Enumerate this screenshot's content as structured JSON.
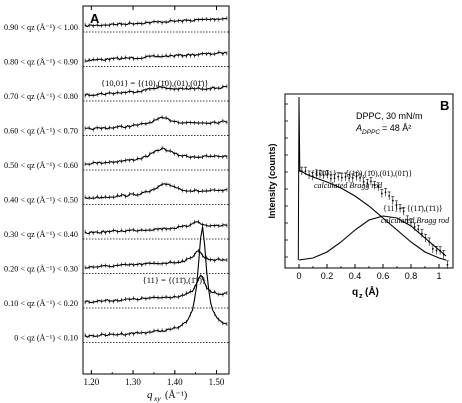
{
  "colors": {
    "ink": "#000000",
    "background": "#ffffff"
  },
  "chart_data": [
    {
      "type": "line",
      "panel_label": "A",
      "xlabel": "q",
      "xlabel_sub": "xy",
      "xlabel_unit": "(Å⁻¹)",
      "xlim": [
        1.18,
        1.53
      ],
      "x_ticks": [
        1.2,
        1.3,
        1.4,
        1.5
      ],
      "x_tick_labels": [
        "1.20",
        "1.30",
        "1.40",
        "1.50"
      ],
      "grid": false,
      "baseline_style": "dotted",
      "annotations": [
        "{10,01} = {(10),(1̄0),(01),(01̄)}",
        "{11} = {(11̄),(1̄1)}"
      ],
      "bands": [
        {
          "label": "0.90 < qz (Å⁻¹) < 1.00",
          "peak_x": null,
          "peak_height": 0
        },
        {
          "label": "0.80 < qz (Å⁻¹) < 0.90",
          "peak_x": null,
          "peak_height": 0
        },
        {
          "label": "0.70 < qz (Å⁻¹) < 0.80",
          "peak_x": 1.36,
          "peak_height": 0.18
        },
        {
          "label": "0.60 < qz (Å⁻¹) < 0.70",
          "peak_x": 1.37,
          "peak_height": 0.35
        },
        {
          "label": "0.50 < qz (Å⁻¹) < 0.60",
          "peak_x": 1.37,
          "peak_height": 0.55
        },
        {
          "label": "0.40 < qz (Å⁻¹) < 0.50",
          "peak_x": 1.38,
          "peak_height": 0.5
        },
        {
          "label": "0.30 < qz (Å⁻¹) < 0.40",
          "peak_x": 1.45,
          "peak_height": 0.3
        },
        {
          "label": "0.20 < qz (Å⁻¹) < 0.30",
          "peak_x": 1.455,
          "peak_height": 0.55
        },
        {
          "label": "0.10 < qz (Å⁻¹) < 0.20",
          "peak_x": 1.462,
          "peak_height": 1.0
        },
        {
          "label": "0 < qz (Å⁻¹) < 0.10",
          "peak_x": 1.466,
          "peak_height": 2.6
        }
      ]
    },
    {
      "type": "line",
      "panel_label": "B",
      "title_lines": [
        "DPPC, 30 mN/m",
        "A",
        "DPPC",
        " = 48 Å²"
      ],
      "xlabel": "q",
      "xlabel_sub": "z",
      "xlabel_unit": "(Å)",
      "ylabel": "Intensity (counts)",
      "xlim": [
        -0.1,
        1.1
      ],
      "x_ticks": [
        0,
        0.2,
        0.4,
        0.6,
        0.8,
        1
      ],
      "x_tick_labels": [
        "0",
        "0.2",
        "0.4",
        "0.6",
        "0.8",
        "1"
      ],
      "grid": false,
      "annotations": [
        "{10,01} = {(10),(1̄0),(01),(01̄)}",
        "calculated Bragg rod",
        "{11} = {(11̄),(1̄1)}",
        "calculated Bragg rod"
      ],
      "series": [
        {
          "name": "{10,01}",
          "x": [
            0.0,
            0.05,
            0.1,
            0.2,
            0.3,
            0.4,
            0.5,
            0.6,
            0.7,
            0.8,
            0.9,
            1.0,
            1.05
          ],
          "y": [
            0.92,
            0.88,
            0.85,
            0.8,
            0.74,
            0.66,
            0.56,
            0.44,
            0.32,
            0.2,
            0.1,
            0.04,
            0.02
          ]
        },
        {
          "name": "{11}",
          "x": [
            0.0,
            0.1,
            0.2,
            0.3,
            0.4,
            0.5,
            0.6,
            0.7,
            0.8,
            0.9,
            1.0,
            1.05
          ],
          "y": [
            0.02,
            0.04,
            0.1,
            0.2,
            0.32,
            0.42,
            0.46,
            0.44,
            0.36,
            0.24,
            0.12,
            0.06
          ]
        }
      ]
    }
  ]
}
